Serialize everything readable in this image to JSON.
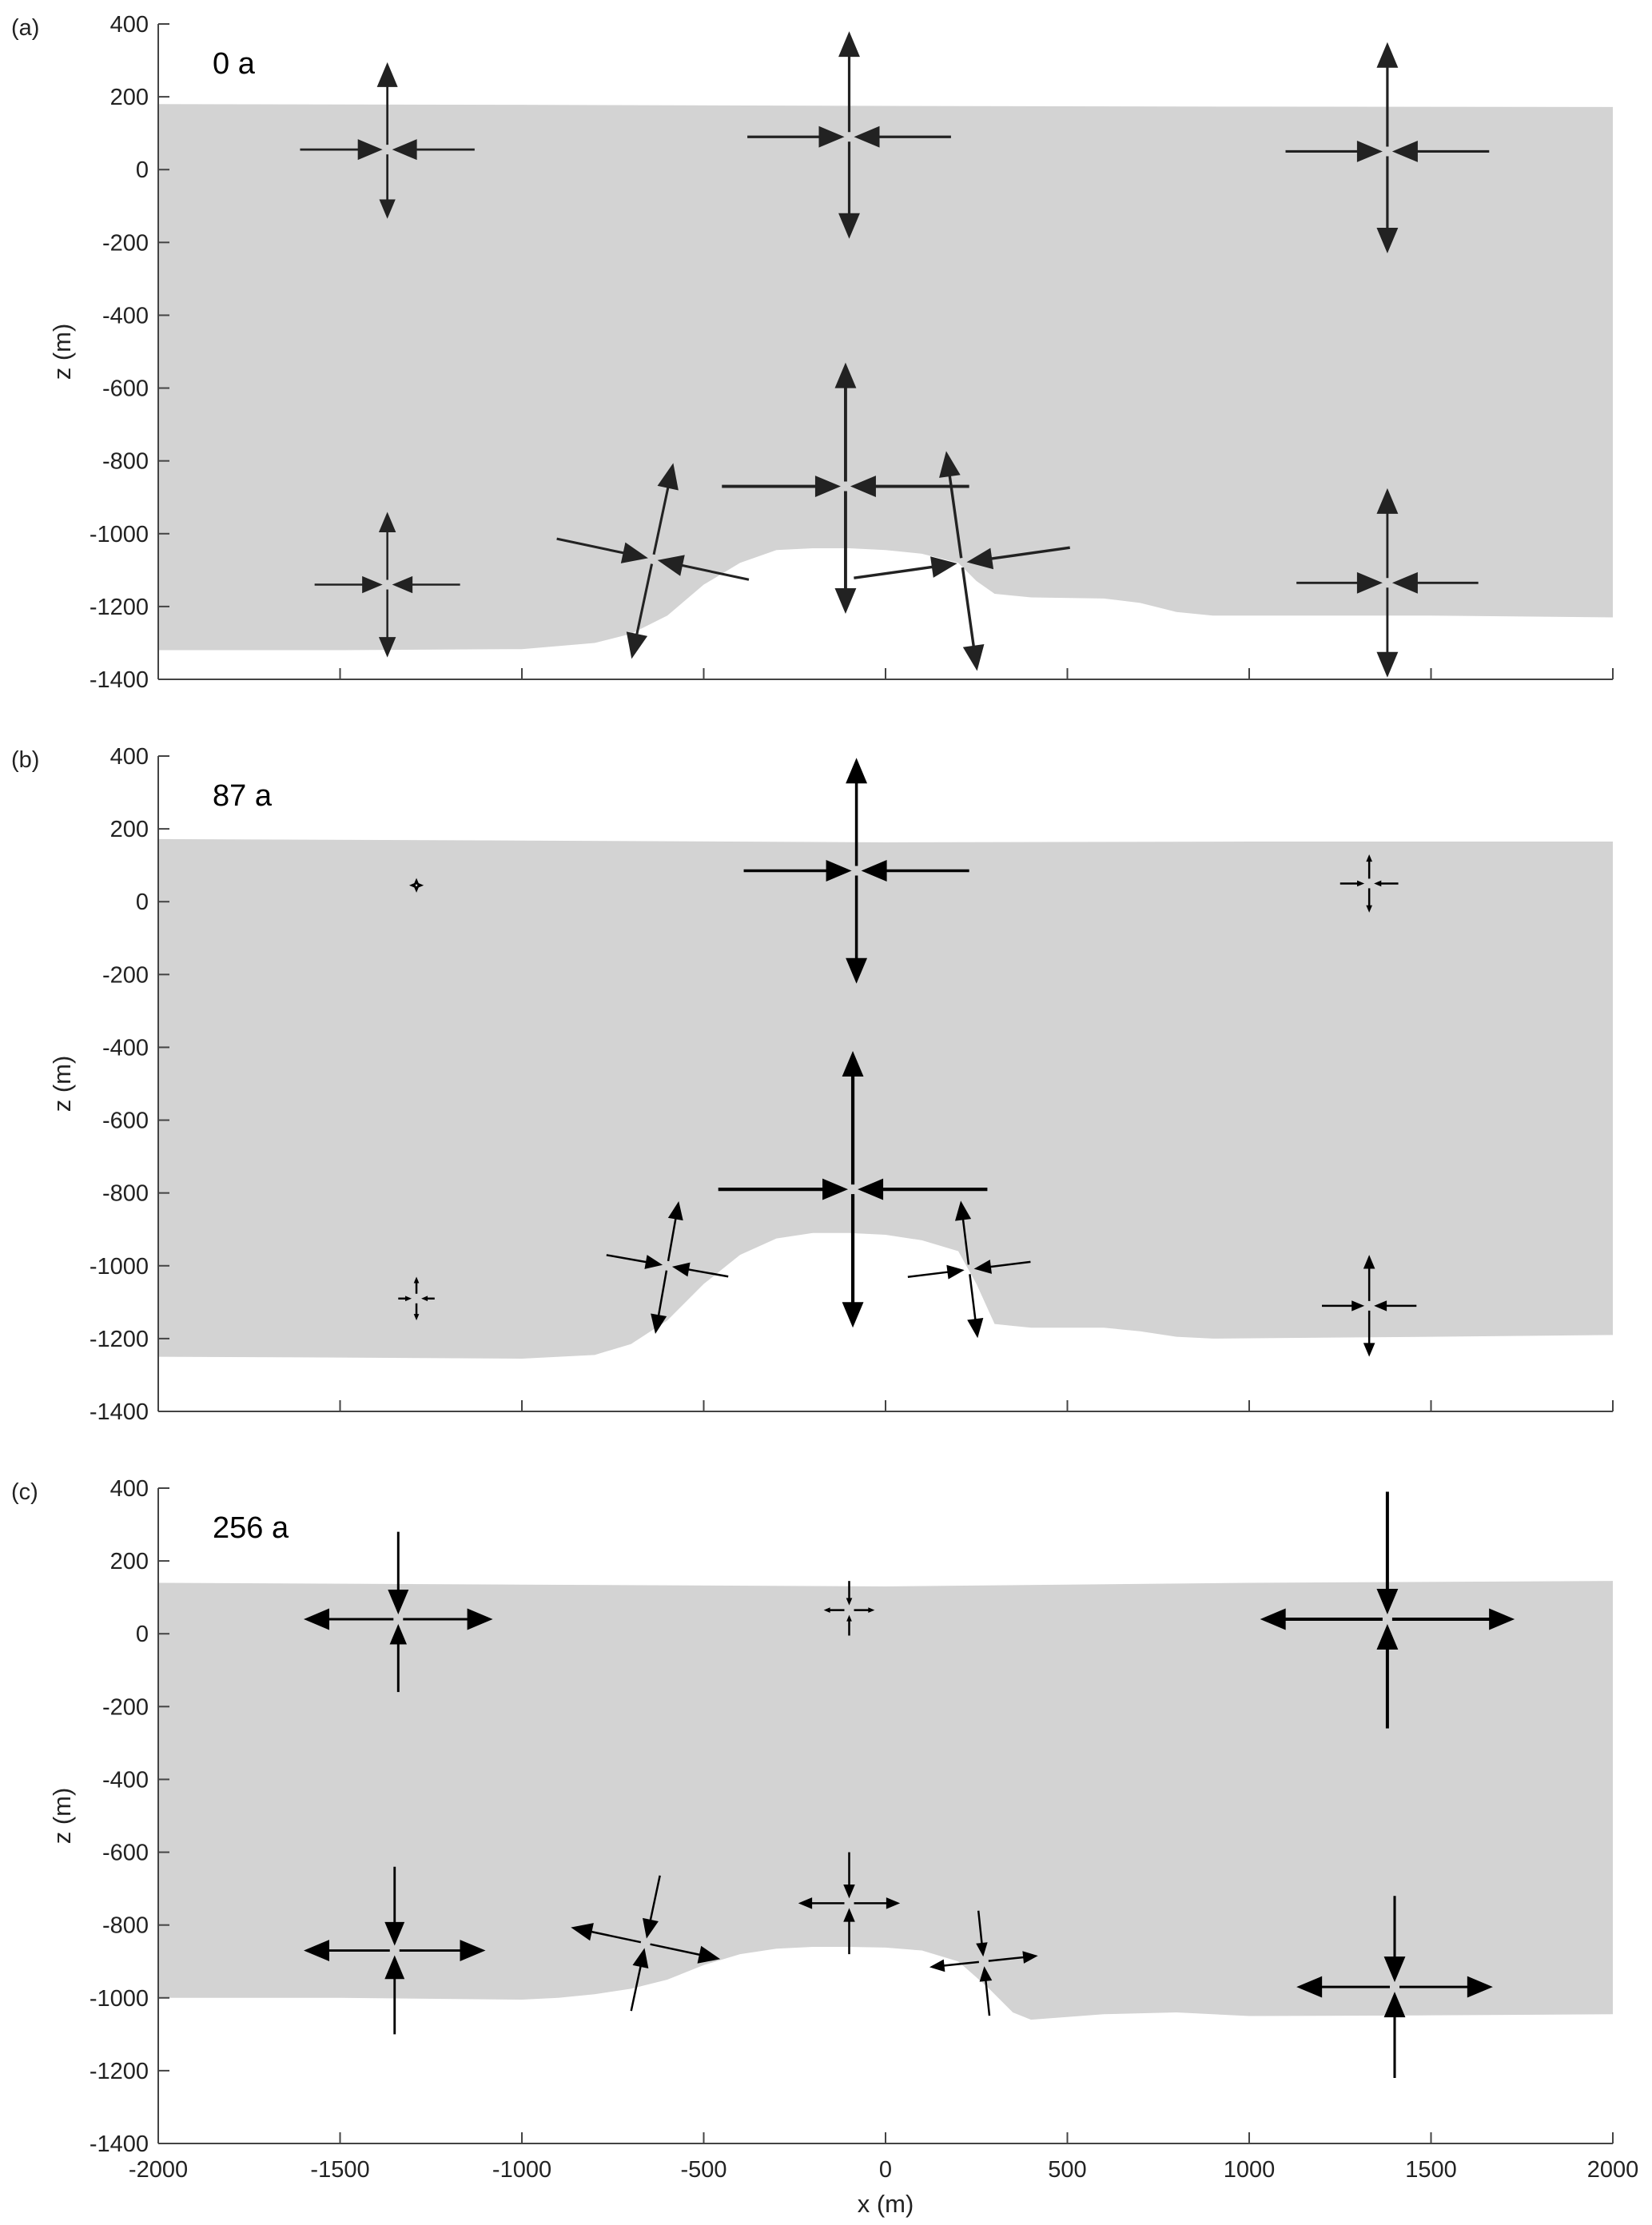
{
  "chart_data": [
    {
      "type": "quiver",
      "panel_label": "(a)",
      "time_label": "0 a",
      "xlabel": "",
      "ylabel": "z (m)",
      "xlim": [
        -2000,
        2000
      ],
      "ylim": [
        -1400,
        400
      ],
      "xticks": [
        "-2000",
        "-1500",
        "-1000",
        "-500",
        "0",
        "500",
        "1000",
        "1500",
        "2000"
      ],
      "yticks": [
        "400",
        "200",
        "0",
        "-200",
        "-400",
        "-600",
        "-800",
        "-1000",
        "-1200",
        "-1400"
      ],
      "ice_fill_color": "#d3d3d3",
      "arrow_color": "#222222",
      "surface": [
        [
          -2000,
          180
        ],
        [
          -1000,
          178
        ],
        [
          0,
          175
        ],
        [
          1000,
          173
        ],
        [
          2000,
          172
        ]
      ],
      "bed": [
        [
          -2000,
          -1320
        ],
        [
          -1500,
          -1320
        ],
        [
          -1000,
          -1317
        ],
        [
          -800,
          -1300
        ],
        [
          -700,
          -1275
        ],
        [
          -600,
          -1225
        ],
        [
          -500,
          -1140
        ],
        [
          -400,
          -1080
        ],
        [
          -300,
          -1045
        ],
        [
          -200,
          -1040
        ],
        [
          -100,
          -1040
        ],
        [
          0,
          -1045
        ],
        [
          100,
          -1055
        ],
        [
          200,
          -1080
        ],
        [
          250,
          -1130
        ],
        [
          300,
          -1165
        ],
        [
          400,
          -1175
        ],
        [
          600,
          -1178
        ],
        [
          700,
          -1190
        ],
        [
          800,
          -1215
        ],
        [
          900,
          -1225
        ],
        [
          1500,
          -1225
        ],
        [
          2000,
          -1230
        ]
      ],
      "stress_crosses": [
        {
          "x": -1370,
          "z": 55,
          "h_length": 240,
          "h_dir": "in",
          "up": 240,
          "down": 190,
          "v_dir": "out",
          "tilt": 0
        },
        {
          "x": -100,
          "z": 90,
          "h_length": 280,
          "h_dir": "in",
          "up": 290,
          "down": 280,
          "v_dir": "out",
          "tilt": 0
        },
        {
          "x": 1380,
          "z": 50,
          "h_length": 280,
          "h_dir": "in",
          "up": 300,
          "down": 280,
          "v_dir": "out",
          "tilt": 0
        },
        {
          "x": -1370,
          "z": -1140,
          "h_length": 200,
          "h_dir": "in",
          "up": 200,
          "down": 200,
          "v_dir": "out",
          "tilt": 0
        },
        {
          "x": -640,
          "z": -1070,
          "h_length": 270,
          "h_dir": "in",
          "up": 270,
          "down": 280,
          "v_dir": "out",
          "tilt": 12
        },
        {
          "x": -110,
          "z": -870,
          "h_length": 340,
          "h_dir": "in",
          "up": 340,
          "down": 350,
          "v_dir": "out",
          "tilt": 0
        },
        {
          "x": 210,
          "z": -1080,
          "h_length": 300,
          "h_dir": "in",
          "up": 310,
          "down": 300,
          "v_dir": "out",
          "tilt": -8
        },
        {
          "x": 1380,
          "z": -1135,
          "h_length": 250,
          "h_dir": "in",
          "up": 260,
          "down": 260,
          "v_dir": "out",
          "tilt": 0
        }
      ]
    },
    {
      "type": "quiver",
      "panel_label": "(b)",
      "time_label": "87 a",
      "xlabel": "",
      "ylabel": "z (m)",
      "xlim": [
        -2000,
        2000
      ],
      "ylim": [
        -1400,
        400
      ],
      "xticks": [
        "-2000",
        "-1500",
        "-1000",
        "-500",
        "0",
        "500",
        "1000",
        "1500",
        "2000"
      ],
      "yticks": [
        "400",
        "200",
        "0",
        "-200",
        "-400",
        "-600",
        "-800",
        "-1000",
        "-1200",
        "-1400"
      ],
      "ice_fill_color": "#d3d3d3",
      "arrow_color": "#000000",
      "surface": [
        [
          -2000,
          172
        ],
        [
          -1000,
          168
        ],
        [
          0,
          163
        ],
        [
          1000,
          165
        ],
        [
          2000,
          165
        ]
      ],
      "bed": [
        [
          -2000,
          -1250
        ],
        [
          -1500,
          -1252
        ],
        [
          -1000,
          -1255
        ],
        [
          -800,
          -1245
        ],
        [
          -700,
          -1215
        ],
        [
          -600,
          -1150
        ],
        [
          -500,
          -1050
        ],
        [
          -400,
          -970
        ],
        [
          -300,
          -925
        ],
        [
          -200,
          -910
        ],
        [
          -100,
          -910
        ],
        [
          0,
          -915
        ],
        [
          100,
          -930
        ],
        [
          200,
          -960
        ],
        [
          250,
          -1050
        ],
        [
          300,
          -1160
        ],
        [
          400,
          -1170
        ],
        [
          600,
          -1170
        ],
        [
          700,
          -1180
        ],
        [
          800,
          -1195
        ],
        [
          900,
          -1200
        ],
        [
          1500,
          -1195
        ],
        [
          2000,
          -1190
        ]
      ],
      "stress_crosses": [
        {
          "x": -1290,
          "z": 45,
          "h_length": 20,
          "h_dir": "out",
          "up": 20,
          "down": 20,
          "v_dir": "out",
          "tilt": 0
        },
        {
          "x": -80,
          "z": 85,
          "h_length": 310,
          "h_dir": "in",
          "up": 310,
          "down": 310,
          "v_dir": "out",
          "tilt": 0
        },
        {
          "x": 1330,
          "z": 50,
          "h_length": 80,
          "h_dir": "in",
          "up": 80,
          "down": 80,
          "v_dir": "out",
          "tilt": 0
        },
        {
          "x": -1290,
          "z": -1090,
          "h_length": 50,
          "h_dir": "in",
          "up": 60,
          "down": 60,
          "v_dir": "out",
          "tilt": 0
        },
        {
          "x": -600,
          "z": -1000,
          "h_length": 170,
          "h_dir": "in",
          "up": 180,
          "down": 190,
          "v_dir": "out",
          "tilt": 10
        },
        {
          "x": -90,
          "z": -790,
          "h_length": 370,
          "h_dir": "in",
          "up": 380,
          "down": 380,
          "v_dir": "out",
          "tilt": 0
        },
        {
          "x": 230,
          "z": -1010,
          "h_length": 170,
          "h_dir": "in",
          "up": 190,
          "down": 190,
          "v_dir": "out",
          "tilt": -7
        },
        {
          "x": 1330,
          "z": -1110,
          "h_length": 130,
          "h_dir": "in",
          "up": 140,
          "down": 140,
          "v_dir": "out",
          "tilt": 0
        }
      ]
    },
    {
      "type": "quiver",
      "panel_label": "(c)",
      "time_label": "256 a",
      "xlabel": "x (m)",
      "ylabel": "z (m)",
      "xlim": [
        -2000,
        2000
      ],
      "ylim": [
        -1400,
        400
      ],
      "xticks": [
        "-2000",
        "-1500",
        "-1000",
        "-500",
        "0",
        "500",
        "1000",
        "1500",
        "2000"
      ],
      "yticks": [
        "400",
        "200",
        "0",
        "-200",
        "-400",
        "-600",
        "-800",
        "-1000",
        "-1200",
        "-1400"
      ],
      "ice_fill_color": "#d3d3d3",
      "arrow_color": "#000000",
      "surface": [
        [
          -2000,
          140
        ],
        [
          -1000,
          135
        ],
        [
          0,
          130
        ],
        [
          1000,
          140
        ],
        [
          2000,
          145
        ]
      ],
      "bed": [
        [
          -2000,
          -1000
        ],
        [
          -1500,
          -1000
        ],
        [
          -1000,
          -1005
        ],
        [
          -900,
          -1000
        ],
        [
          -800,
          -990
        ],
        [
          -700,
          -975
        ],
        [
          -600,
          -950
        ],
        [
          -500,
          -910
        ],
        [
          -400,
          -880
        ],
        [
          -300,
          -865
        ],
        [
          -200,
          -860
        ],
        [
          -100,
          -860
        ],
        [
          0,
          -862
        ],
        [
          100,
          -870
        ],
        [
          200,
          -900
        ],
        [
          280,
          -970
        ],
        [
          350,
          -1040
        ],
        [
          400,
          -1060
        ],
        [
          600,
          -1045
        ],
        [
          800,
          -1040
        ],
        [
          1000,
          -1050
        ],
        [
          1500,
          -1048
        ],
        [
          2000,
          -1045
        ]
      ],
      "stress_crosses": [
        {
          "x": -1340,
          "z": 40,
          "h_length": 260,
          "h_dir": "out",
          "up": 240,
          "down": 200,
          "v_dir": "in",
          "tilt": 0
        },
        {
          "x": -100,
          "z": 65,
          "h_length": 70,
          "h_dir": "out",
          "up": 80,
          "down": 70,
          "v_dir": "in",
          "tilt": 0
        },
        {
          "x": 1380,
          "z": 40,
          "h_length": 350,
          "h_dir": "out",
          "up": 350,
          "down": 300,
          "v_dir": "in",
          "tilt": 0
        },
        {
          "x": -1350,
          "z": -870,
          "h_length": 250,
          "h_dir": "out",
          "up": 230,
          "down": 230,
          "v_dir": "in",
          "tilt": 0
        },
        {
          "x": -660,
          "z": -850,
          "h_length": 210,
          "h_dir": "out",
          "up": 190,
          "down": 190,
          "v_dir": "in",
          "tilt": 12
        },
        {
          "x": -100,
          "z": -740,
          "h_length": 140,
          "h_dir": "out",
          "up": 140,
          "down": 140,
          "v_dir": "in",
          "tilt": 0
        },
        {
          "x": 270,
          "z": -900,
          "h_length": 150,
          "h_dir": "out",
          "up": 140,
          "down": 150,
          "v_dir": "in",
          "tilt": -6
        },
        {
          "x": 1400,
          "z": -970,
          "h_length": 270,
          "h_dir": "out",
          "up": 250,
          "down": 250,
          "v_dir": "in",
          "tilt": 0
        }
      ]
    }
  ]
}
